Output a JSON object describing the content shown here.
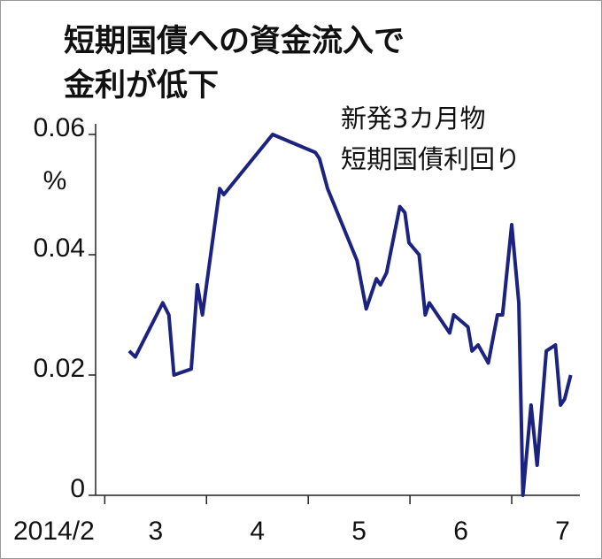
{
  "chart_data": {
    "type": "line",
    "title": [
      "短期国債への資金流入で",
      "金利が低下"
    ],
    "annotation": [
      "新発3カ月物",
      "短期国債利回り"
    ],
    "y_unit": "%",
    "x": [
      3.24,
      3.3,
      3.57,
      3.63,
      3.68,
      3.85,
      3.91,
      3.96,
      4.13,
      4.17,
      4.65,
      5.07,
      5.11,
      5.19,
      5.48,
      5.57,
      5.67,
      5.71,
      5.77,
      5.9,
      5.95,
      5.99,
      6.09,
      6.15,
      6.19,
      6.39,
      6.43,
      6.57,
      6.61,
      6.67,
      6.77,
      6.86,
      6.91,
      7.0,
      7.07,
      7.11,
      7.19,
      7.25,
      7.34,
      7.43,
      7.48,
      7.52,
      7.58
    ],
    "series": [
      {
        "color": "#1c2280",
        "values": [
          0.024,
          0.023,
          0.032,
          0.03,
          0.02,
          0.021,
          0.035,
          0.03,
          0.051,
          0.05,
          0.06,
          0.057,
          0.056,
          0.051,
          0.039,
          0.031,
          0.036,
          0.035,
          0.037,
          0.048,
          0.047,
          0.042,
          0.04,
          0.03,
          0.032,
          0.027,
          0.03,
          0.028,
          0.024,
          0.025,
          0.022,
          0.03,
          0.03,
          0.045,
          0.032,
          0.0,
          0.015,
          0.005,
          0.024,
          0.025,
          0.015,
          0.016,
          0.02
        ]
      }
    ],
    "xlim": [
      2.91,
      7.67
    ],
    "xticks": [
      {
        "value": 2.5,
        "label": "2014/2"
      },
      {
        "value": 3.5,
        "label": "3"
      },
      {
        "value": 4.5,
        "label": "4"
      },
      {
        "value": 5.5,
        "label": "5"
      },
      {
        "value": 6.5,
        "label": "6"
      },
      {
        "value": 7.5,
        "label": "7"
      }
    ],
    "ylim": [
      0,
      0.06
    ],
    "yticks": [
      0,
      0.02,
      0.04,
      0.06
    ]
  }
}
